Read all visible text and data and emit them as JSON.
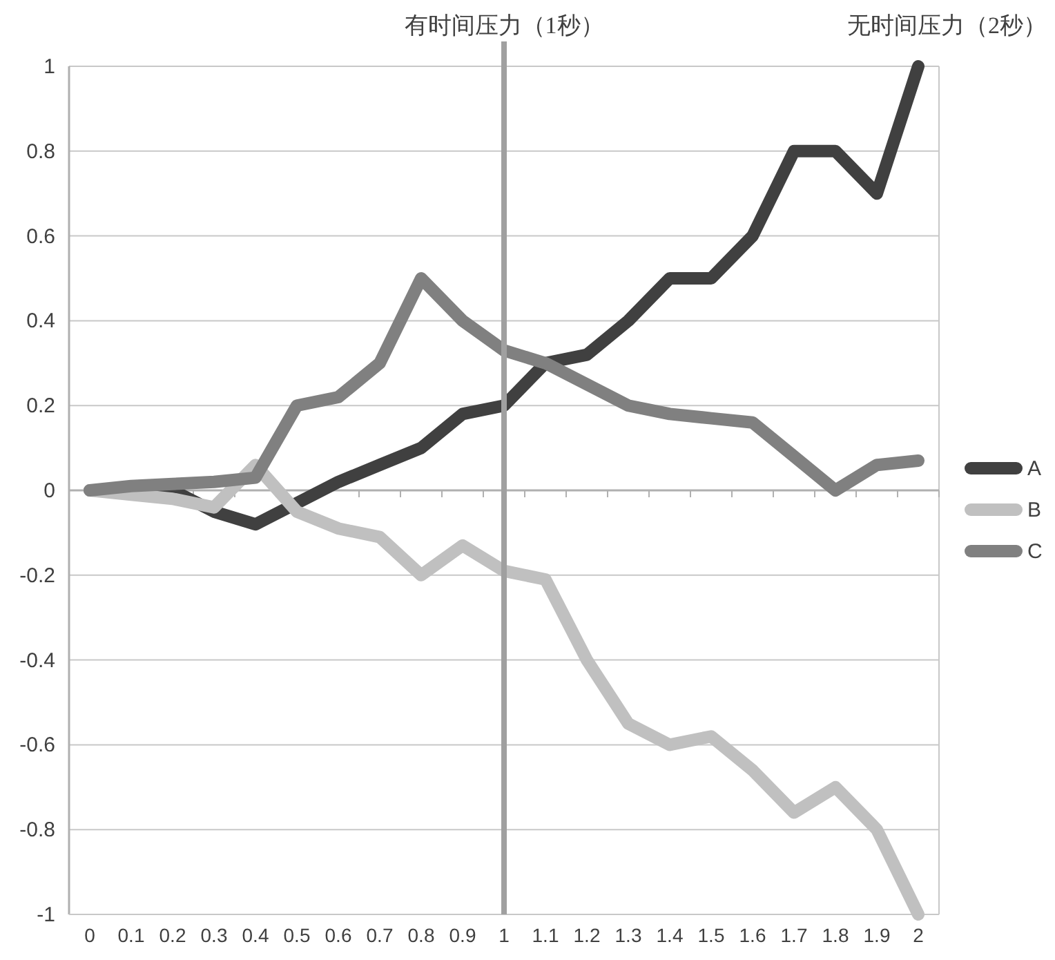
{
  "chart_data": {
    "type": "line",
    "categories": [
      "0",
      "0.1",
      "0.2",
      "0.3",
      "0.4",
      "0.5",
      "0.6",
      "0.7",
      "0.8",
      "0.9",
      "1",
      "1.1",
      "1.2",
      "1.3",
      "1.4",
      "1.5",
      "1.6",
      "1.7",
      "1.8",
      "1.9",
      "2"
    ],
    "series": [
      {
        "name": "A",
        "color": "#404040",
        "values": [
          0,
          0,
          0,
          -0.05,
          -0.08,
          -0.03,
          0.02,
          0.06,
          0.1,
          0.18,
          0.2,
          0.3,
          0.32,
          0.4,
          0.5,
          0.5,
          0.6,
          0.8,
          0.8,
          0.7,
          1
        ]
      },
      {
        "name": "B",
        "color": "#c0c0c0",
        "values": [
          0,
          -0.01,
          -0.02,
          -0.04,
          0.06,
          -0.05,
          -0.09,
          -0.11,
          -0.2,
          -0.13,
          -0.19,
          -0.21,
          -0.4,
          -0.55,
          -0.6,
          -0.58,
          -0.66,
          -0.76,
          -0.7,
          -0.8,
          -1
        ]
      },
      {
        "name": "C",
        "color": "#808080",
        "values": [
          0,
          0.01,
          0.015,
          0.02,
          0.03,
          0.2,
          0.22,
          0.3,
          0.5,
          0.4,
          0.33,
          0.3,
          0.25,
          0.2,
          0.18,
          0.17,
          0.16,
          0.08,
          0,
          0.06,
          0.07
        ]
      }
    ],
    "ylim": [
      -1,
      1
    ],
    "yticks": [
      -1,
      -0.8,
      -0.6,
      -0.4,
      -0.2,
      0,
      0.2,
      0.4,
      0.6,
      0.8,
      1
    ],
    "grid": "y",
    "legend": "right",
    "line_style": "solid",
    "ref_lines": [
      {
        "axis": "x",
        "value": "1",
        "label": "有时间压力（1秒）",
        "color": "#a0a0a0"
      }
    ],
    "annotations": [
      "无时间压力（2秒）"
    ]
  }
}
